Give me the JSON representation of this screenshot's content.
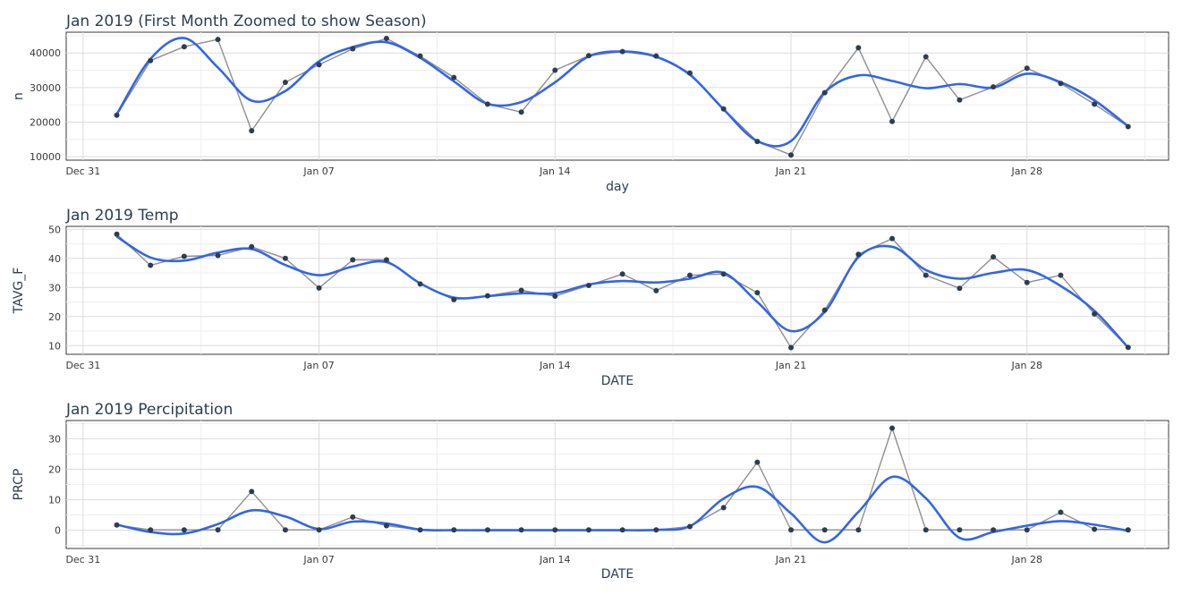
{
  "chart_data": [
    {
      "type": "line",
      "title": "Jan 2019 (First Month Zoomed to show Season)",
      "xlabel": "day",
      "ylabel": "n",
      "x_ticks": [
        "Dec 31",
        "Jan 07",
        "Jan 14",
        "Jan 21",
        "Jan 28"
      ],
      "x_tick_days": [
        0,
        7,
        14,
        21,
        28
      ],
      "x_range_days": [
        -0.5,
        32.2
      ],
      "ylim": [
        9000,
        46000
      ],
      "y_ticks": [
        10000,
        20000,
        30000,
        40000
      ],
      "y_tick_labels": [
        "10000",
        "20000",
        "30000",
        "40000"
      ],
      "x_days": [
        1,
        2,
        3,
        4,
        5,
        6,
        7,
        8,
        9,
        10,
        11,
        12,
        13,
        14,
        15,
        16,
        17,
        18,
        19,
        20,
        21,
        22,
        23,
        24,
        25,
        26,
        27,
        28,
        29,
        30,
        31
      ],
      "series": [
        {
          "values": [
            22000,
            37800,
            41800,
            43900,
            17500,
            31500,
            36600,
            41200,
            44200,
            39100,
            32900,
            25200,
            22900,
            35000,
            39200,
            40400,
            39100,
            34200,
            23800,
            14400,
            10500,
            28500,
            41500,
            20200,
            38900,
            26400,
            30200,
            35600,
            31200,
            25200,
            18700
          ]
        },
        {
          "values": [
            22300,
            38300,
            44300,
            35800,
            26200,
            29000,
            37600,
            41700,
            43100,
            38600,
            31800,
            25300,
            25800,
            31500,
            39000,
            40400,
            38900,
            33700,
            23700,
            14500,
            14500,
            28600,
            33500,
            31900,
            29800,
            31000,
            30000,
            34000,
            31500,
            26300,
            18800
          ]
        }
      ],
      "grid": true
    },
    {
      "type": "line",
      "title": "Jan 2019 Temp",
      "xlabel": "DATE",
      "ylabel": "TAVG_F",
      "x_ticks": [
        "Dec 31",
        "Jan 07",
        "Jan 14",
        "Jan 21",
        "Jan 28"
      ],
      "x_tick_days": [
        0,
        7,
        14,
        21,
        28
      ],
      "x_range_days": [
        -0.5,
        32.2
      ],
      "ylim": [
        7,
        51
      ],
      "y_ticks": [
        10,
        20,
        30,
        40,
        50
      ],
      "y_tick_labels": [
        "10",
        "20",
        "30",
        "40",
        "50"
      ],
      "x_days": [
        1,
        2,
        3,
        4,
        5,
        6,
        7,
        8,
        9,
        10,
        11,
        12,
        13,
        14,
        15,
        16,
        17,
        18,
        19,
        20,
        21,
        22,
        23,
        24,
        25,
        26,
        27,
        28,
        29,
        30,
        31
      ],
      "series": [
        {
          "values": [
            48.3,
            37.6,
            40.7,
            41.0,
            44.0,
            40.0,
            29.8,
            39.5,
            39.5,
            31.2,
            25.8,
            27.1,
            29.0,
            27.0,
            30.7,
            34.6,
            28.9,
            34.2,
            34.6,
            28.2,
            9.3,
            22.2,
            41.4,
            46.8,
            34.2,
            29.7,
            40.5,
            31.7,
            34.2,
            20.9,
            9.4
          ]
        },
        {
          "values": [
            47.5,
            40.3,
            39.2,
            42.0,
            43.2,
            37.7,
            34.2,
            37.2,
            38.7,
            31.4,
            26.5,
            27.0,
            28.0,
            28.0,
            31.0,
            32.2,
            31.7,
            33.0,
            35.0,
            25.0,
            15.0,
            21.6,
            40.4,
            44.0,
            36.0,
            33.0,
            35.0,
            36.0,
            30.5,
            22.0,
            9.3
          ]
        }
      ],
      "grid": true
    },
    {
      "type": "line",
      "title": "Jan 2019 Percipitation",
      "xlabel": "DATE",
      "ylabel": "PRCP",
      "x_ticks": [
        "Dec 31",
        "Jan 07",
        "Jan 14",
        "Jan 21",
        "Jan 28"
      ],
      "x_tick_days": [
        0,
        7,
        14,
        21,
        28
      ],
      "x_range_days": [
        -0.5,
        32.2
      ],
      "ylim": [
        -6,
        36
      ],
      "y_ticks": [
        0,
        10,
        20,
        30
      ],
      "y_tick_labels": [
        "0",
        "10",
        "20",
        "30"
      ],
      "x_days": [
        1,
        2,
        3,
        4,
        5,
        6,
        7,
        8,
        9,
        10,
        11,
        12,
        13,
        14,
        15,
        16,
        17,
        18,
        19,
        20,
        21,
        22,
        23,
        24,
        25,
        26,
        27,
        28,
        29,
        30,
        31
      ],
      "series": [
        {
          "values": [
            1.7,
            0.1,
            0.1,
            0.1,
            12.7,
            0.1,
            0.1,
            4.3,
            1.5,
            0.1,
            0.1,
            0.1,
            0.1,
            0.1,
            0.1,
            0.1,
            0.1,
            1.2,
            7.4,
            22.3,
            0.1,
            0.1,
            0.1,
            33.5,
            0.1,
            0.1,
            0.1,
            0.1,
            5.9,
            0.3,
            0.1
          ]
        },
        {
          "values": [
            1.8,
            -0.6,
            -1.1,
            2.0,
            6.5,
            4.5,
            0.4,
            2.8,
            2.2,
            0.2,
            0.0,
            0.0,
            0.0,
            0.0,
            0.0,
            0.0,
            0.1,
            1.3,
            10.4,
            14.2,
            5.5,
            -4.0,
            6.0,
            17.5,
            10.5,
            -2.5,
            -0.6,
            1.5,
            3.0,
            1.8,
            -0.2
          ]
        }
      ],
      "grid": true
    }
  ]
}
